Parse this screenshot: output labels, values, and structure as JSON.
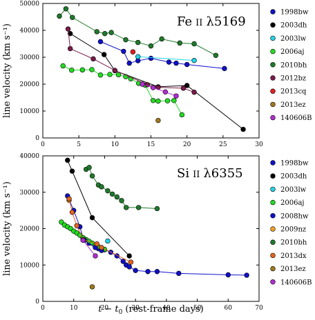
{
  "chart_data": [
    {
      "type": "line",
      "title": "Fe II λ5169",
      "title_parts": {
        "element": "Fe",
        "ion": "II",
        "wavelength": "λ5169"
      },
      "ylabel": "line velocity (km s⁻¹)",
      "xlim": [
        0,
        30
      ],
      "ylim": [
        0,
        50000
      ],
      "xticks": [
        0,
        5,
        10,
        15,
        20,
        25,
        30
      ],
      "yticks": [
        0,
        10000,
        20000,
        30000,
        40000,
        50000
      ],
      "legend_position": "outside-right",
      "grid": false,
      "series": [
        {
          "name": "1998bw",
          "color": "#1010c8",
          "x": [
            8,
            11.2,
            12,
            13.2,
            15,
            17.5,
            18.5,
            20,
            25.2
          ],
          "y": [
            35800,
            32200,
            27800,
            28700,
            29600,
            28200,
            27800,
            27300,
            25800
          ]
        },
        {
          "name": "2003dh",
          "color": "#000000",
          "x": [
            3.8,
            8.5,
            10,
            16,
            20,
            27.8
          ],
          "y": [
            38800,
            31000,
            25000,
            19000,
            19500,
            3200
          ]
        },
        {
          "name": "2003lw",
          "color": "#22d4e6",
          "x": [
            13.2,
            21
          ],
          "y": [
            30200,
            28800
          ]
        },
        {
          "name": "2006aj",
          "color": "#22dd22",
          "x": [
            2.8,
            4,
            5.5,
            6.8,
            8,
            9.3,
            10.5,
            11.5,
            12.2,
            13.3,
            14.2,
            15.3,
            16,
            17.3,
            18.2,
            19.3
          ],
          "y": [
            26800,
            25200,
            25300,
            25400,
            23400,
            23600,
            23500,
            22800,
            22000,
            20300,
            19600,
            13900,
            13700,
            13800,
            13900,
            8600
          ]
        },
        {
          "name": "2010bh",
          "color": "#1f7a2a",
          "x": [
            2.3,
            3.2,
            4.1,
            7.5,
            8.6,
            9.5,
            11.5,
            13.2,
            15,
            16.5,
            19,
            21,
            24
          ],
          "y": [
            45300,
            48000,
            44800,
            39500,
            38800,
            39200,
            36500,
            35500,
            34200,
            36800,
            35300,
            35000,
            30700
          ]
        },
        {
          "name": "2012bz",
          "color": "#7a1a4a",
          "x": [
            3.5,
            3.8,
            7,
            10,
            14.5,
            16,
            19.5,
            21
          ],
          "y": [
            40500,
            33200,
            29400,
            25100,
            19800,
            18800,
            18500,
            17000
          ]
        },
        {
          "name": "2013cq",
          "color": "#e61e1e",
          "x": [
            12.5
          ],
          "y": [
            32000
          ]
        },
        {
          "name": "2013ez",
          "color": "#a0781e",
          "x": [
            16
          ],
          "y": [
            6500
          ]
        },
        {
          "name": "140606B",
          "color": "#b02ed2",
          "x": [
            13.8,
            15.3,
            17,
            18.5
          ],
          "y": [
            20000,
            18700,
            17100,
            15600
          ]
        }
      ]
    },
    {
      "type": "line",
      "title": "Si II λ6355",
      "title_parts": {
        "element": "Si",
        "ion": "II",
        "wavelength": "λ6355"
      },
      "ylabel": "line velocity (km s⁻¹)",
      "xlabel": "t − t0 (rest-frame days)",
      "xlabel_parts": {
        "t": "t",
        "minus": "−",
        "t0": "t",
        "sub": "0",
        "rest": "(rest-frame days)"
      },
      "xlim": [
        0,
        70
      ],
      "ylim": [
        0,
        40000
      ],
      "xticks": [
        0,
        10,
        20,
        30,
        40,
        50,
        60,
        70
      ],
      "yticks": [
        0,
        10000,
        20000,
        30000,
        40000
      ],
      "legend_position": "outside-right",
      "grid": false,
      "series": [
        {
          "name": "1998bw",
          "color": "#1010c8",
          "x": [
            8,
            10,
            12,
            13,
            15,
            17,
            18,
            20,
            22,
            24,
            26,
            27,
            28,
            30,
            34,
            37,
            44,
            60,
            66
          ],
          "y": [
            29000,
            25000,
            20500,
            17500,
            16000,
            15000,
            14500,
            14200,
            13500,
            12500,
            11000,
            10000,
            9500,
            8500,
            8200,
            8200,
            7700,
            7300,
            7200
          ]
        },
        {
          "name": "2003dh",
          "color": "#000000",
          "x": [
            8,
            9.5,
            16,
            28
          ],
          "y": [
            38800,
            35800,
            23000,
            12500
          ]
        },
        {
          "name": "2003lw",
          "color": "#22d4e6",
          "x": [
            21
          ],
          "y": [
            16600
          ]
        },
        {
          "name": "2006aj",
          "color": "#22dd22",
          "x": [
            6,
            7,
            8,
            9,
            10,
            11,
            12,
            13,
            14,
            15,
            16,
            17,
            18,
            19,
            20
          ],
          "y": [
            21800,
            21000,
            20500,
            20000,
            19300,
            18800,
            18200,
            17500,
            17000,
            16500,
            16000,
            15500,
            15000,
            14700,
            14300
          ]
        },
        {
          "name": "2008hw",
          "color": "#1010c8",
          "x": [
            13.5,
            17,
            19
          ],
          "y": [
            16800,
            14800,
            14000
          ]
        },
        {
          "name": "2009nz",
          "color": "#f0a020",
          "x": [
            8.5
          ],
          "y": [
            27800
          ]
        },
        {
          "name": "2010bh",
          "color": "#1f7a2a",
          "x": [
            14,
            15,
            16,
            18,
            19,
            21,
            22.5,
            24,
            25.5,
            27,
            31,
            37
          ],
          "y": [
            36300,
            36800,
            34500,
            32000,
            31500,
            30400,
            29500,
            28700,
            27700,
            25800,
            25800,
            25500
          ]
        },
        {
          "name": "2013dx",
          "color": "#e6641e",
          "x": [
            8.5,
            9.5,
            11,
            13,
            17.5,
            19,
            28.5
          ],
          "y": [
            28200,
            24500,
            20800,
            17000,
            15800,
            14800,
            10800
          ]
        },
        {
          "name": "2013ez",
          "color": "#a0781e",
          "x": [
            16
          ],
          "y": [
            4000
          ]
        },
        {
          "name": "140606B",
          "color": "#b02ed2",
          "x": [
            13,
            17
          ],
          "y": [
            16800,
            12500
          ]
        }
      ]
    }
  ]
}
